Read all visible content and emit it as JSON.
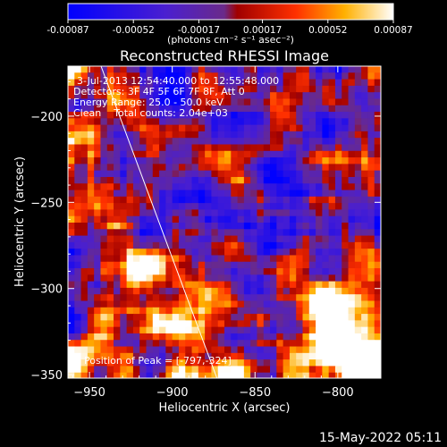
{
  "chart_data": {
    "type": "heatmap",
    "title": "Reconstructed RHESSI Image",
    "xlabel": "Heliocentric X (arcsec)",
    "ylabel": "Heliocentric Y (arcsec)",
    "xlim": [
      -963,
      -774
    ],
    "ylim": [
      -352,
      -171
    ],
    "x_ticks": [
      -950,
      -900,
      -850,
      -800
    ],
    "x_tick_labels": [
      "−950",
      "−900",
      "−850",
      "−800"
    ],
    "y_ticks": [
      -200,
      -250,
      -300,
      -350
    ],
    "y_tick_labels": [
      "−200",
      "−250",
      "−300",
      "−350"
    ],
    "colorbar": {
      "colormap": "blue-purple-red-yellow-white",
      "range": [
        -0.00087,
        0.00087
      ],
      "tick_values": [
        -0.00087,
        -0.00052,
        -0.00017,
        0.00017,
        0.00052,
        0.00087
      ],
      "tick_labels": [
        "-0.00087",
        "-0.00052",
        "-0.00017",
        "0.00017",
        "0.00052",
        "0.00087"
      ],
      "units_label": "(photons cm⁻² s⁻¹ asec⁻²)"
    },
    "annotations": [
      "3-Jul-2013 12:54:40.000 to 12:55:48.000",
      "Detectors: 3F 4F 5F 6F 7F 8F, Att 0",
      "Energy Range: 25.0 - 50.0 keV",
      "Clean    Total counts: 2.04e+03"
    ],
    "peak_label": "Position of Peak = [-797,-324]",
    "peak_position": [
      -797,
      -324
    ],
    "limb_line": [
      [
        -943,
        -171
      ],
      [
        -873,
        -352
      ]
    ],
    "grid": false,
    "legend": "none"
  },
  "footer": {
    "date_stamp": "15-May-2022 05:11"
  },
  "colors": {
    "background": "#000000",
    "text": "#ffffff",
    "limb": "#ffffff"
  }
}
